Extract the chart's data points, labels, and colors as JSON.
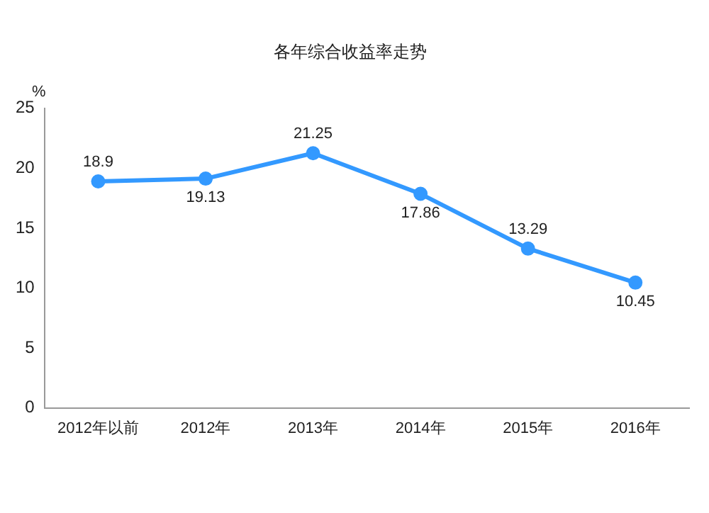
{
  "chart_data": {
    "type": "line",
    "title": "各年综合收益率走势",
    "ylabel": "%",
    "categories": [
      "2012年以前",
      "2012年",
      "2013年",
      "2014年",
      "2015年",
      "2016年"
    ],
    "series": [
      {
        "color": "#3399ff",
        "values": [
          18.9,
          19.13,
          21.25,
          17.86,
          13.29,
          10.45
        ]
      }
    ],
    "ylim": [
      0,
      25
    ],
    "yticks": [
      0,
      5,
      10,
      15,
      20,
      25
    ],
    "grid": false,
    "legend": false,
    "marker": "circle",
    "line_style": "solid",
    "data_labels": true
  }
}
